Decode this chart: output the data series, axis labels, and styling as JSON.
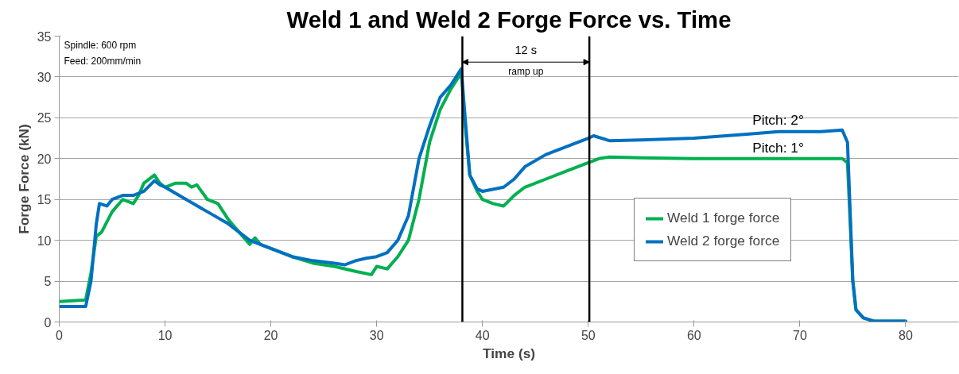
{
  "chart_data": {
    "type": "line",
    "title": "Weld 1 and Weld 2 Forge Force vs. Time",
    "xlabel": "Time (s)",
    "ylabel": "Forge Force (kN)",
    "xlim": [
      0,
      85
    ],
    "xticks": [
      0,
      10,
      20,
      30,
      40,
      50,
      60,
      70,
      80
    ],
    "ylim": [
      0,
      35
    ],
    "yticks": [
      0,
      5,
      10,
      15,
      20,
      25,
      30,
      35
    ],
    "grid": "y",
    "legend": "right",
    "line_style": "solid",
    "marker": "none",
    "series": [
      {
        "name": "Weld 1 forge force",
        "color": "#00b050",
        "x": [
          0,
          2.5,
          3,
          3.5,
          4,
          5,
          6,
          7,
          7.5,
          8,
          9,
          9.5,
          10,
          11,
          12,
          12.5,
          13,
          14,
          15,
          16,
          17,
          18,
          18.5,
          19,
          20,
          22,
          24,
          26,
          28,
          29.5,
          30,
          31,
          32,
          33,
          34,
          35,
          36,
          37,
          38,
          38.3,
          38.8,
          39.5,
          40,
          41,
          42,
          43,
          44,
          46,
          48,
          50,
          51,
          52,
          55,
          60,
          65,
          70,
          74,
          74.5,
          75,
          75.3,
          76,
          77,
          80
        ],
        "values": [
          2.5,
          2.7,
          6,
          10.5,
          11,
          13.5,
          15,
          14.5,
          15.5,
          17,
          18,
          17,
          16.5,
          17,
          17,
          16.5,
          16.8,
          15,
          14.5,
          12.5,
          11,
          9.5,
          10.3,
          9.5,
          9,
          8,
          7.2,
          6.8,
          6.2,
          5.8,
          6.8,
          6.5,
          8,
          10,
          15,
          22,
          26,
          28.5,
          30.5,
          25,
          18,
          16,
          15,
          14.5,
          14.2,
          15.5,
          16.5,
          17.5,
          18.5,
          19.5,
          20,
          20.2,
          20.1,
          20,
          20,
          20,
          20,
          19.5,
          5,
          1.5,
          0.5,
          0.1,
          0.1
        ]
      },
      {
        "name": "Weld 2 forge force",
        "color": "#0070c0",
        "x": [
          0,
          2.5,
          3,
          3.5,
          3.8,
          4.5,
          5,
          6,
          7,
          8,
          9,
          9.5,
          10,
          12,
          14,
          16,
          18,
          20,
          22,
          24,
          26,
          27,
          28,
          29,
          30,
          31,
          32,
          33,
          34,
          35,
          36,
          37,
          38,
          38.3,
          38.8,
          39.5,
          40,
          42,
          43,
          44,
          46,
          48,
          50,
          50.5,
          52,
          55,
          60,
          65,
          68,
          72,
          74,
          74.5,
          75,
          75.3,
          76,
          77,
          80
        ],
        "values": [
          1.9,
          1.9,
          5,
          12,
          14.5,
          14.2,
          15,
          15.5,
          15.5,
          16,
          17.3,
          16.8,
          16.5,
          15,
          13.5,
          12,
          10,
          9,
          8,
          7.5,
          7.2,
          7,
          7.5,
          7.8,
          8,
          8.5,
          10,
          13,
          20,
          24,
          27.5,
          29,
          31,
          26,
          18,
          16.3,
          16,
          16.5,
          17.5,
          19,
          20.5,
          21.5,
          22.5,
          22.8,
          22.2,
          22.3,
          22.5,
          23,
          23.3,
          23.3,
          23.5,
          22,
          5,
          1.5,
          0.5,
          0.1,
          0.1
        ]
      }
    ],
    "ref_lines": [
      {
        "axis": "x",
        "value": 38.1,
        "color": "#000000"
      },
      {
        "axis": "x",
        "value": 50.1,
        "color": "#000000"
      }
    ],
    "annotations": [
      "Spindle:  600 rpm",
      "Feed: 200mm/min",
      "12 s",
      "ramp up",
      "Pitch: 2°",
      "Pitch: 1°"
    ]
  }
}
